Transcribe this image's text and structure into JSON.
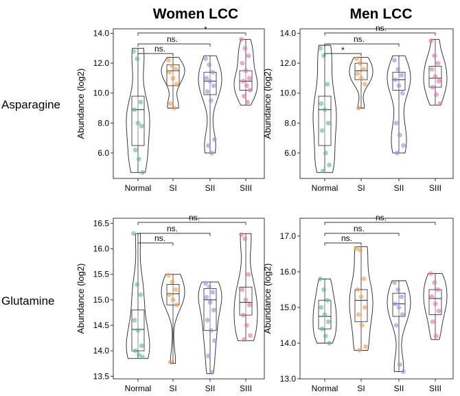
{
  "column_titles": [
    "Women LCC",
    "Men LCC"
  ],
  "row_labels": [
    "Asparagine",
    "Glutamine"
  ],
  "colors": {
    "Normal": "#59b88a",
    "SI": "#f29a45",
    "SII": "#8f8fdc",
    "SIII": "#e86aa6",
    "axis": "#333333",
    "violin": "#222222"
  },
  "chart_data": [
    {
      "id": "asparagine-women",
      "type": "violin-box-strip",
      "title": "Women LCC",
      "row": "Asparagine",
      "xlabel": "",
      "ylabel": "Abundance (log2)",
      "categories": [
        "Normal",
        "SI",
        "SII",
        "SIII"
      ],
      "yticks": [
        6.0,
        8.0,
        10.0,
        12.0,
        14.0
      ],
      "ytick_labels": [
        "6.0",
        "8.0",
        "10.0",
        "12.0",
        "14.0"
      ],
      "ylim": [
        4.3,
        14.3
      ],
      "groups": [
        {
          "category": "Normal",
          "q1": 6.5,
          "median": 8.9,
          "q3": 9.8,
          "min": 4.7,
          "max": 13.0,
          "points": [
            12.8,
            12.3,
            9.4,
            8.9,
            8.0,
            7.8,
            6.2,
            5.6,
            4.7
          ]
        },
        {
          "category": "SI",
          "q1": 10.5,
          "median": 11.5,
          "q3": 11.9,
          "min": 9.0,
          "max": 12.4,
          "points": [
            12.2,
            11.8,
            11.6,
            11.4,
            11.0,
            10.6,
            9.3,
            9.0
          ]
        },
        {
          "category": "SII",
          "q1": 9.9,
          "median": 10.8,
          "q3": 11.4,
          "min": 6.0,
          "max": 12.5,
          "points": [
            12.3,
            11.9,
            11.4,
            11.0,
            10.8,
            10.5,
            10.1,
            9.5,
            6.9,
            6.5,
            6.0
          ]
        },
        {
          "category": "SIII",
          "q1": 10.2,
          "median": 10.8,
          "q3": 11.5,
          "min": 9.2,
          "max": 13.6,
          "points": [
            13.6,
            13.0,
            12.5,
            12.0,
            11.5,
            11.0,
            10.8,
            10.5,
            10.2,
            9.8,
            9.4
          ]
        }
      ],
      "comparisons": [
        {
          "from": "Normal",
          "to": "SI",
          "label": "ns."
        },
        {
          "from": "Normal",
          "to": "SII",
          "label": "ns."
        },
        {
          "from": "Normal",
          "to": "SIII",
          "label": "*"
        }
      ]
    },
    {
      "id": "asparagine-men",
      "type": "violin-box-strip",
      "title": "Men LCC",
      "row": "Asparagine",
      "xlabel": "",
      "ylabel": "Abundance (log2)",
      "categories": [
        "Normal",
        "SI",
        "SII",
        "SIII"
      ],
      "yticks": [
        6.0,
        8.0,
        10.0,
        12.0,
        14.0
      ],
      "ytick_labels": [
        "6.0",
        "8.0",
        "10.0",
        "12.0",
        "14.0"
      ],
      "ylim": [
        4.3,
        14.3
      ],
      "groups": [
        {
          "category": "Normal",
          "q1": 6.5,
          "median": 8.9,
          "q3": 9.8,
          "min": 4.7,
          "max": 13.2,
          "points": [
            13.0,
            12.5,
            10.6,
            9.3,
            8.9,
            8.0,
            7.5,
            6.0,
            5.2,
            4.8
          ]
        },
        {
          "category": "SI",
          "q1": 10.9,
          "median": 11.5,
          "q3": 12.0,
          "min": 9.0,
          "max": 12.4,
          "points": [
            12.3,
            12.0,
            11.6,
            11.3,
            11.0,
            10.6,
            9.0
          ]
        },
        {
          "category": "SII",
          "q1": 10.2,
          "median": 10.9,
          "q3": 11.4,
          "min": 6.0,
          "max": 12.5,
          "points": [
            12.2,
            11.6,
            11.2,
            10.9,
            10.5,
            10.0,
            8.0,
            7.2,
            6.5,
            6.0
          ]
        },
        {
          "category": "SIII",
          "q1": 10.4,
          "median": 11.0,
          "q3": 11.8,
          "min": 9.2,
          "max": 13.6,
          "points": [
            13.5,
            12.5,
            12.0,
            11.6,
            11.1,
            10.8,
            10.4,
            9.9,
            9.3
          ]
        }
      ],
      "comparisons": [
        {
          "from": "Normal",
          "to": "SI",
          "label": "*"
        },
        {
          "from": "Normal",
          "to": "SII",
          "label": "ns."
        },
        {
          "from": "Normal",
          "to": "SIII",
          "label": "ns."
        }
      ]
    },
    {
      "id": "glutamine-women",
      "type": "violin-box-strip",
      "title": "Women LCC",
      "row": "Glutamine",
      "xlabel": "",
      "ylabel": "Abundance (log2)",
      "categories": [
        "Normal",
        "SI",
        "SII",
        "SIII"
      ],
      "yticks": [
        13.5,
        14.0,
        14.5,
        15.0,
        15.5,
        16.0,
        16.5
      ],
      "ytick_labels": [
        "13.5",
        "14.0",
        "14.5",
        "15.0",
        "15.5",
        "16.0",
        "16.5"
      ],
      "ylim": [
        13.45,
        16.6
      ],
      "groups": [
        {
          "category": "Normal",
          "q1": 14.0,
          "median": 14.42,
          "q3": 14.8,
          "min": 13.85,
          "max": 16.3,
          "points": [
            16.3,
            15.3,
            15.1,
            14.6,
            14.4,
            14.1,
            14.0,
            13.92,
            13.88
          ]
        },
        {
          "category": "SI",
          "q1": 14.9,
          "median": 15.12,
          "q3": 15.3,
          "min": 13.75,
          "max": 15.5,
          "points": [
            15.48,
            15.35,
            15.2,
            15.1,
            15.0,
            14.9,
            13.78
          ]
        },
        {
          "category": "SII",
          "q1": 14.4,
          "median": 15.0,
          "q3": 15.22,
          "min": 13.55,
          "max": 15.35,
          "points": [
            15.32,
            15.25,
            15.15,
            15.05,
            14.95,
            14.8,
            14.6,
            14.4,
            14.2,
            13.9,
            13.58
          ]
        },
        {
          "category": "SIII",
          "q1": 14.7,
          "median": 14.95,
          "q3": 15.25,
          "min": 14.2,
          "max": 16.3,
          "points": [
            16.28,
            16.2,
            15.5,
            15.2,
            15.0,
            14.9,
            14.7,
            14.5,
            14.3,
            14.22
          ]
        }
      ],
      "comparisons": [
        {
          "from": "Normal",
          "to": "SI",
          "label": "ns."
        },
        {
          "from": "Normal",
          "to": "SII",
          "label": "ns."
        },
        {
          "from": "Normal",
          "to": "SIII",
          "label": "ns."
        }
      ]
    },
    {
      "id": "glutamine-men",
      "type": "violin-box-strip",
      "title": "Men LCC",
      "row": "Glutamine",
      "xlabel": "",
      "ylabel": "Abundance (log2)",
      "categories": [
        "Normal",
        "SI",
        "SII",
        "SIII"
      ],
      "yticks": [
        13.0,
        14.0,
        15.0,
        16.0,
        17.0
      ],
      "ytick_labels": [
        "13.0",
        "14.0",
        "15.0",
        "16.0",
        "17.0"
      ],
      "ylim": [
        13.0,
        17.5
      ],
      "groups": [
        {
          "category": "Normal",
          "q1": 14.4,
          "median": 14.75,
          "q3": 15.2,
          "min": 14.0,
          "max": 15.8,
          "points": [
            15.8,
            15.5,
            15.2,
            15.0,
            14.8,
            14.6,
            14.4,
            14.2,
            14.0
          ]
        },
        {
          "category": "SI",
          "q1": 14.6,
          "median": 15.2,
          "q3": 15.5,
          "min": 13.8,
          "max": 16.7,
          "points": [
            16.65,
            16.6,
            15.8,
            15.5,
            15.3,
            15.0,
            14.8,
            14.5,
            13.9,
            13.8
          ]
        },
        {
          "category": "SII",
          "q1": 14.75,
          "median": 15.1,
          "q3": 15.4,
          "min": 13.2,
          "max": 15.75,
          "points": [
            15.7,
            15.5,
            15.3,
            15.1,
            15.0,
            14.8,
            14.5,
            13.4,
            13.2
          ]
        },
        {
          "category": "SIII",
          "q1": 14.8,
          "median": 15.25,
          "q3": 15.5,
          "min": 14.1,
          "max": 15.95,
          "points": [
            15.95,
            15.7,
            15.5,
            15.3,
            15.1,
            14.9,
            14.6,
            14.2
          ]
        }
      ],
      "comparisons": [
        {
          "from": "Normal",
          "to": "SI",
          "label": "ns."
        },
        {
          "from": "Normal",
          "to": "SII",
          "label": "ns."
        },
        {
          "from": "Normal",
          "to": "SIII",
          "label": "ns."
        }
      ]
    }
  ]
}
